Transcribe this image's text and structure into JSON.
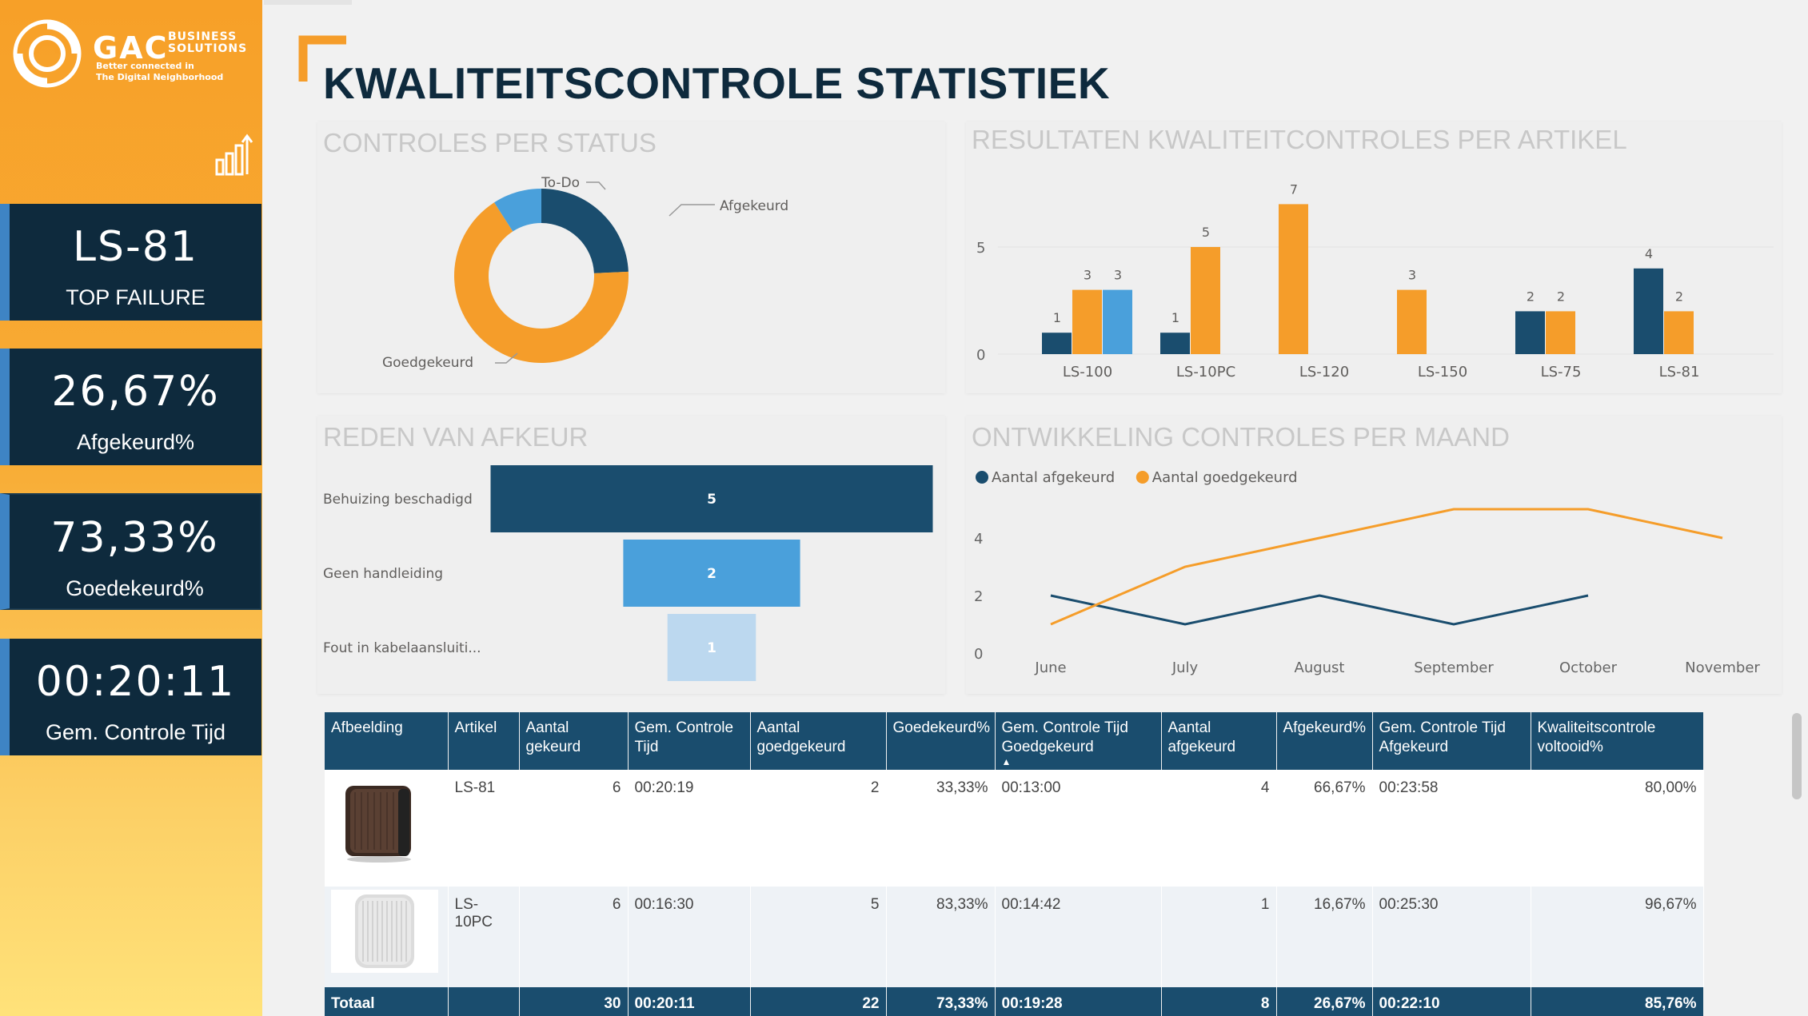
{
  "brand": {
    "name": "GAC",
    "sub": [
      "BUSINESS",
      "SOLUTIONS"
    ],
    "tagline": [
      "Better connected in",
      "The Digital Neighborhood"
    ]
  },
  "sidebar": {
    "kpis": [
      {
        "value": "LS-81",
        "label": "TOP FAILURE"
      },
      {
        "value": "26,67%",
        "label": "Afgekeurd%"
      },
      {
        "value": "73,33%",
        "label": "Goedekeurd%"
      },
      {
        "value": "00:20:11",
        "label": "Gem. Controle Tijd"
      }
    ]
  },
  "page": {
    "title": "KWALITEITSCONTROLE STATISTIEK"
  },
  "status_chart": {
    "title": "CONTROLES PER STATUS",
    "slices": [
      {
        "label": "Afgekeurd",
        "value": 8,
        "color": "#1a4d6e"
      },
      {
        "label": "Goedgekeurd",
        "value": 22,
        "color": "#f59d2a"
      },
      {
        "label": "To-Do",
        "value": 3,
        "color": "#4aa0db"
      }
    ]
  },
  "article_chart": {
    "title": "RESULTATEN KWALITEITCONTROLES PER ARTIKEL",
    "y_ticks": [
      "5",
      "0"
    ],
    "ylim": [
      0,
      8
    ],
    "categories": [
      "LS-100",
      "LS-10PC",
      "LS-120",
      "LS-150",
      "LS-75",
      "LS-81"
    ],
    "series": [
      {
        "color": "#1a4d6e",
        "values": [
          1,
          1,
          null,
          null,
          2,
          4
        ]
      },
      {
        "color": "#f59d2a",
        "values": [
          3,
          5,
          7,
          3,
          2,
          2
        ]
      },
      {
        "color": "#4aa0db",
        "values": [
          3,
          null,
          null,
          null,
          null,
          null
        ]
      }
    ]
  },
  "reason_chart": {
    "title": "REDEN VAN AFKEUR",
    "items": [
      {
        "label": "Behuizing beschadigd",
        "value": 5,
        "color": "#1a4d6e",
        "text_color": "#ffffff"
      },
      {
        "label": "Geen handleiding",
        "value": 2,
        "color": "#4aa0db",
        "text_color": "#ffffff"
      },
      {
        "label": "Fout in kabelaansluiti...",
        "value": 1,
        "color": "#bcd8ef",
        "text_color": "#ffffff"
      }
    ]
  },
  "monthly_chart": {
    "title": "ONTWIKKELING CONTROLES PER MAAND",
    "legend": [
      "Aantal afgekeurd",
      "Aantal goedgekeurd"
    ],
    "months": [
      "June",
      "July",
      "August",
      "September",
      "October",
      "November"
    ],
    "y_ticks": [
      "4",
      "2",
      "0"
    ],
    "ylim": [
      0,
      6
    ],
    "series": [
      {
        "name": "Aantal afgekeurd",
        "color": "#1a4d6e",
        "values": [
          2,
          1,
          2,
          1,
          2,
          null
        ]
      },
      {
        "name": "Aantal goedgekeurd",
        "color": "#f59d2a",
        "values": [
          1,
          3,
          4,
          5,
          5,
          4
        ]
      }
    ]
  },
  "chart_data": [
    {
      "type": "pie",
      "title": "CONTROLES PER STATUS",
      "labels": [
        "Afgekeurd",
        "Goedgekeurd",
        "To-Do"
      ],
      "values": [
        8,
        22,
        3
      ]
    },
    {
      "type": "bar",
      "title": "RESULTATEN KWALITEITCONTROLES PER ARTIKEL",
      "categories": [
        "LS-100",
        "LS-10PC",
        "LS-120",
        "LS-150",
        "LS-75",
        "LS-81"
      ],
      "series": [
        {
          "values": [
            1,
            1,
            null,
            null,
            2,
            4
          ]
        },
        {
          "values": [
            3,
            5,
            7,
            3,
            2,
            2
          ]
        },
        {
          "values": [
            3,
            null,
            null,
            null,
            null,
            null
          ]
        }
      ],
      "ylim": [
        0,
        8
      ]
    },
    {
      "type": "bar",
      "title": "REDEN VAN AFKEUR",
      "categories": [
        "Behuizing beschadigd",
        "Geen handleiding",
        "Fout in kabelaansluiti..."
      ],
      "values": [
        5,
        2,
        1
      ]
    },
    {
      "type": "line",
      "title": "ONTWIKKELING CONTROLES PER MAAND",
      "x": [
        "June",
        "July",
        "August",
        "September",
        "October",
        "November"
      ],
      "series": [
        {
          "name": "Aantal afgekeurd",
          "values": [
            2,
            1,
            2,
            1,
            2,
            null
          ]
        },
        {
          "name": "Aantal goedgekeurd",
          "values": [
            1,
            3,
            4,
            5,
            5,
            4
          ]
        }
      ],
      "ylim": [
        0,
        6
      ]
    }
  ],
  "table": {
    "headers": [
      "Afbeelding",
      "Artikel",
      "Aantal gekeurd",
      "Gem. Controle Tijd",
      "Aantal goedgekeurd",
      "Goedekeurd%",
      "Gem. Controle Tijd Goedgekeurd",
      "Aantal afgekeurd",
      "Afgekeurd%",
      "Gem. Controle Tijd Afgekeurd",
      "Kwaliteitscontrole voltooid%"
    ],
    "rows": [
      {
        "image": "speaker-dark",
        "cells": [
          "LS-81",
          "6",
          "00:20:19",
          "2",
          "33,33%",
          "00:13:00",
          "4",
          "66,67%",
          "00:23:58",
          "80,00%"
        ]
      },
      {
        "image": "speaker-white",
        "cells": [
          "LS-10PC",
          "6",
          "00:16:30",
          "5",
          "83,33%",
          "00:14:42",
          "1",
          "16,67%",
          "00:25:30",
          "96,67%"
        ]
      }
    ],
    "total": [
      "Totaal",
      "30",
      "00:20:11",
      "22",
      "73,33%",
      "00:19:28",
      "8",
      "26,67%",
      "00:22:10",
      "85,76%"
    ]
  }
}
